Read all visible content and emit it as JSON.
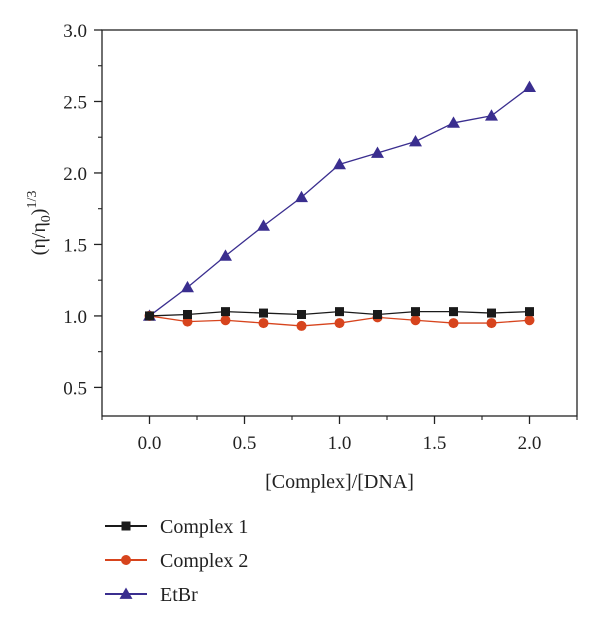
{
  "chart_data": {
    "type": "line",
    "xlabel": "[Complex]/[DNA]",
    "ylabel_main": "(η/η",
    "ylabel_sub": "0",
    "ylabel_close": ")",
    "ylabel_sup": "1/3",
    "xlim": [
      -0.25,
      2.25
    ],
    "ylim": [
      0.3,
      3.0
    ],
    "xticks": [
      0.0,
      0.5,
      1.0,
      1.5,
      2.0
    ],
    "xtick_labels": [
      "0.0",
      "0.5",
      "1.0",
      "1.5",
      "2.0"
    ],
    "yticks": [
      0.5,
      1.0,
      1.5,
      2.0,
      2.5,
      3.0
    ],
    "ytick_labels": [
      "0.5",
      "1.0",
      "1.5",
      "2.0",
      "2.5",
      "3.0"
    ],
    "legend_position": "bottom-left, below plot",
    "x": [
      0.0,
      0.2,
      0.4,
      0.6,
      0.8,
      1.0,
      1.2,
      1.4,
      1.6,
      1.8,
      2.0
    ],
    "series": [
      {
        "name": "Complex 1",
        "marker": "square",
        "color": "#1a1a1a",
        "values": [
          1.0,
          1.01,
          1.03,
          1.02,
          1.01,
          1.03,
          1.01,
          1.03,
          1.03,
          1.02,
          1.03
        ]
      },
      {
        "name": "Complex 2",
        "marker": "circle",
        "color": "#d7441d",
        "values": [
          1.0,
          0.96,
          0.97,
          0.95,
          0.93,
          0.95,
          0.99,
          0.97,
          0.95,
          0.95,
          0.97
        ]
      },
      {
        "name": "EtBr",
        "marker": "triangle",
        "color": "#3a2e8f",
        "values": [
          1.0,
          1.2,
          1.42,
          1.63,
          1.83,
          2.06,
          2.14,
          2.22,
          2.35,
          2.4,
          2.6
        ]
      }
    ]
  }
}
